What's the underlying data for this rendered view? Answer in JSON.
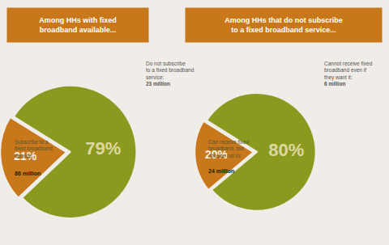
{
  "chart_data": [
    {
      "type": "pie",
      "title": "Among HHs with fixed\nbroadband available...",
      "values": [
        79,
        21
      ],
      "value_labels": [
        "79%",
        "21%"
      ],
      "data_labels": true,
      "colors": [
        "#8b9a1e",
        "#c8781a"
      ],
      "annotations": [
        "Subscribe to a\nfixed broadband\nservice:",
        "86 million",
        "Do not subscribe\nto a fixed broadband\nservice: ",
        "23 million"
      ]
    },
    {
      "type": "pie",
      "title": "Among HHs that do not subscribe\nto a fixed broadband service...",
      "values": [
        80,
        20
      ],
      "value_labels": [
        "80%",
        "20%"
      ],
      "data_labels": true,
      "colors": [
        "#8b9a1e",
        "#c8781a"
      ],
      "annotations": [
        "Can receive fixed\nbroadband, but\nchoose not to:",
        "24 million",
        "Cannot receive fixed\nbroadband even if\nthey want it: ",
        "6 million"
      ]
    }
  ]
}
